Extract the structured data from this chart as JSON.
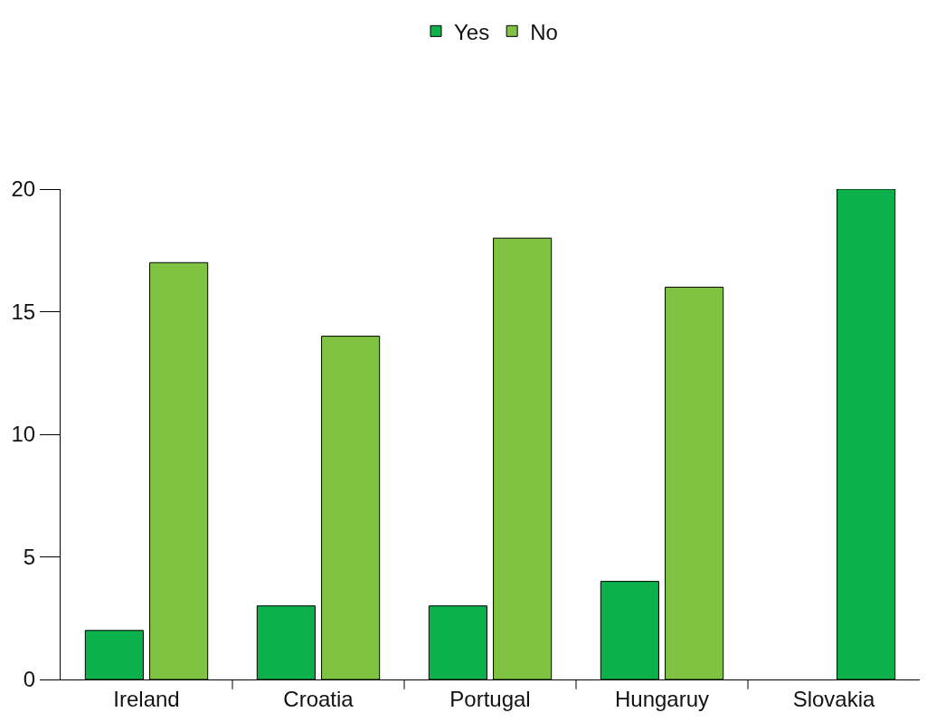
{
  "chart_data": {
    "type": "bar",
    "categories": [
      "Ireland",
      "Croatia",
      "Portugal",
      "Hungaruy",
      "Slovakia"
    ],
    "series": [
      {
        "name": "Yes",
        "color": "#0db14b",
        "values": [
          2,
          3,
          3,
          4,
          null
        ]
      },
      {
        "name": "No",
        "color": "#80c342",
        "colors": [
          "#80c342",
          "#80c342",
          "#80c342",
          "#80c342",
          "#0db14b"
        ],
        "values": [
          17,
          14,
          18,
          16,
          20
        ]
      }
    ],
    "ylim": [
      0,
      20
    ],
    "yticks": [
      0,
      5,
      10,
      15,
      20
    ],
    "legend": "top"
  }
}
